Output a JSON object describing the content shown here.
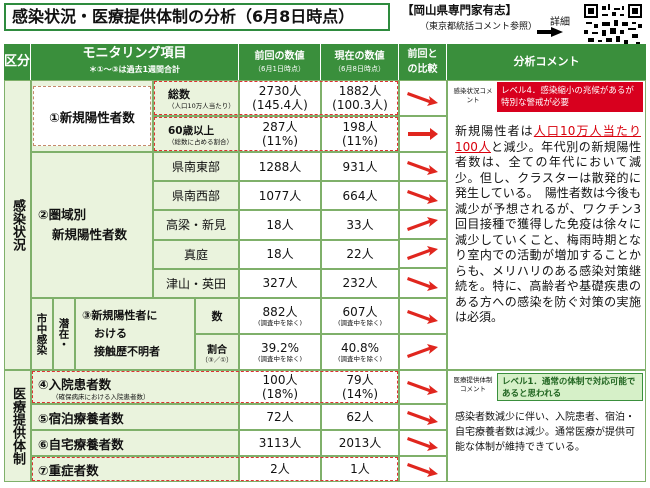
{
  "header": {
    "title": "感染状況・医療提供体制の分析（6月8日時点）",
    "source_line1": "【岡山県専門家有志】",
    "source_line2": "（東京都統括コメント参照）",
    "detail_label": "詳細"
  },
  "columns": {
    "kubun": "区分",
    "item": "モニタリング項目",
    "item_note": "＊①〜③は過去1週間合計",
    "prev": "前回の数値",
    "prev_note": "（6月1日時点）",
    "curr": "現在の数値",
    "curr_note": "（6月8日時点）",
    "compare": "前回との比較",
    "comment": "分析コメント"
  },
  "sections": {
    "infection": "感染状況",
    "medical": "医療提供体制",
    "city_latent": "市中感染",
    "latent_label": "潜在・"
  },
  "rows": {
    "new_pos": {
      "label": "①新規陽性者数",
      "total": "総数",
      "total_note": "（人口10万人当たり）",
      "total_prev": "2730人",
      "total_prev2": "(145.4人)",
      "total_curr": "1882人",
      "total_curr2": "(100.3人)",
      "elderly": "60歳以上",
      "elderly_note": "（総数に占める割合）",
      "elderly_prev": "287人",
      "elderly_prev2": "(11%)",
      "elderly_curr": "198人",
      "elderly_curr2": "(11%)"
    },
    "region": {
      "label1": "②圏域別",
      "label2": "新規陽性者数",
      "items": [
        {
          "name": "県南東部",
          "prev": "1288人",
          "curr": "931人"
        },
        {
          "name": "県南西部",
          "prev": "1077人",
          "curr": "664人"
        },
        {
          "name": "高梁・新見",
          "prev": "18人",
          "curr": "33人"
        },
        {
          "name": "真庭",
          "prev": "18人",
          "curr": "22人"
        },
        {
          "name": "津山・英田",
          "prev": "327人",
          "curr": "232人"
        }
      ]
    },
    "unknown": {
      "label1": "③新規陽性者に",
      "label2": "おける",
      "label3": "接触歴不明者",
      "count": "数",
      "ratio": "割合",
      "ratio_note": "（③／①）",
      "count_prev": "882人",
      "count_prev_note": "(調査中を除く)",
      "count_curr": "607人",
      "count_curr_note": "(調査中を除く)",
      "ratio_prev": "39.2%",
      "ratio_prev_note": "(調査中を除く)",
      "ratio_curr": "40.8%",
      "ratio_curr_note": "(調査中を除く)"
    },
    "inpatient": {
      "label": "④入院患者数",
      "note": "（確保病床における入院患者数）",
      "prev": "100人",
      "prev2": "(18%)",
      "curr": "79人",
      "curr2": "(14%)"
    },
    "hotel": {
      "label": "⑤宿泊療養者数",
      "prev": "72人",
      "curr": "62人"
    },
    "home": {
      "label": "⑥自宅療養者数",
      "prev": "3113人",
      "curr": "2013人"
    },
    "severe": {
      "label": "⑦重症者数",
      "prev": "2人",
      "curr": "1人"
    }
  },
  "comments": {
    "infection_badge": "感染状況コメント",
    "infection_level": "レベル4．感染縮小の兆候があるが特別な警戒が必要",
    "infection_text_pre": "新規陽性者は",
    "infection_text_red": "人口10万人当たり100人",
    "infection_text_post": "と減少。年代別の新規陽性者数は、全ての年代において減少。但し、クラスターは散発的に発生している。　陽性者数は今後も減少が予想されるが、ワクチン3回目接種で獲得した免疫は徐々に減少していくこと、梅雨時期となり室内での活動が増加することからも、メリハリのある感染対策継続を。特に、高齢者や基礎疾患のある方への感染を防ぐ対策の実施は必須。",
    "medical_badge": "医療提供体制コメント",
    "medical_level": "レベル1．通常の体制で対応可能であると思われる",
    "medical_text": "感染者数減少に伴い、入院患者、宿泊・自宅療養者数は減少。通常医療が提供可能な体制が維持できている。"
  },
  "colors": {
    "green": "#3a8f3c",
    "red_arrow": "#e0261e",
    "light": "#eaf3dd"
  }
}
